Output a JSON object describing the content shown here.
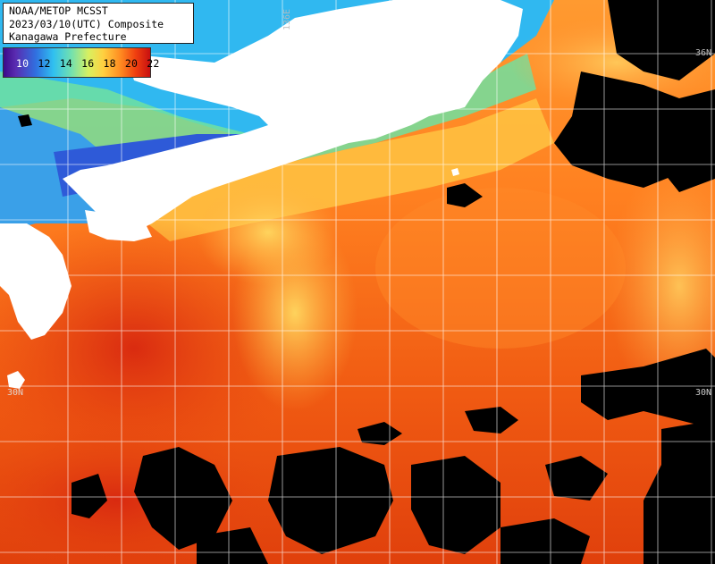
{
  "title": {
    "line1": "NOAA/METOP MCSST",
    "line2": "2023/03/10(UTC) Composite",
    "line3": "Kanagawa Prefecture"
  },
  "color_scale": {
    "labels": [
      "10",
      "12",
      "14",
      "16",
      "18",
      "20",
      "22"
    ],
    "colors": [
      "#3a0a8a",
      "#3070e0",
      "#30c0f0",
      "#d8f060",
      "#ffd040",
      "#ff8a20",
      "#c81010"
    ]
  },
  "grid_labels": {
    "lon_136e": "136E",
    "lat_36n": "36N",
    "lat_30n_left": "30N",
    "lat_30n_right": "30N"
  },
  "legend_colors": {
    "land": "#ffffff",
    "no_data_cloud": "#000000",
    "grid": "#ffffff"
  }
}
